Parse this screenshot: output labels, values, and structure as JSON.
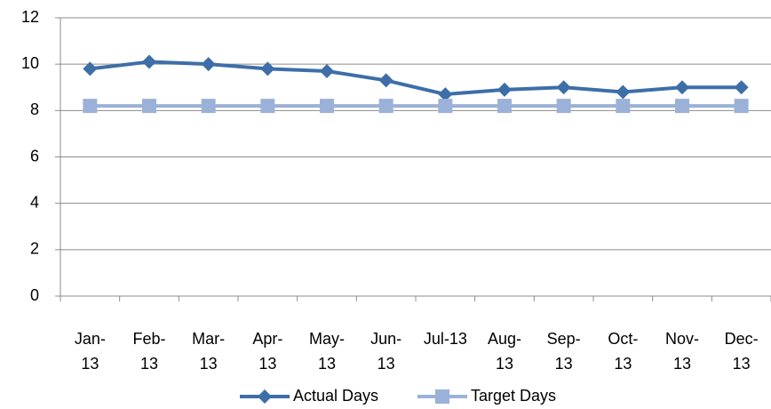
{
  "chart_data": {
    "type": "line",
    "categories": [
      "Jan-13",
      "Feb-13",
      "Mar-13",
      "Apr-13",
      "May-13",
      "Jun-13",
      "Jul-13",
      "Aug-13",
      "Sep-13",
      "Oct-13",
      "Nov-13",
      "Dec-13"
    ],
    "series": [
      {
        "name": "Actual Days",
        "color": "#3d6ea8",
        "marker": "diamond",
        "values": [
          9.8,
          10.1,
          10.0,
          9.8,
          9.7,
          9.3,
          8.7,
          8.9,
          9.0,
          8.8,
          9.0,
          9.0
        ]
      },
      {
        "name": "Target Days",
        "color": "#9bb1d8",
        "marker": "square",
        "values": [
          8.2,
          8.2,
          8.2,
          8.2,
          8.2,
          8.2,
          8.2,
          8.2,
          8.2,
          8.2,
          8.2,
          8.2
        ]
      }
    ],
    "ylim": [
      0,
      12
    ],
    "yticks": [
      0,
      2,
      4,
      6,
      8,
      10,
      12
    ],
    "grid": true,
    "legend": "bottom"
  }
}
